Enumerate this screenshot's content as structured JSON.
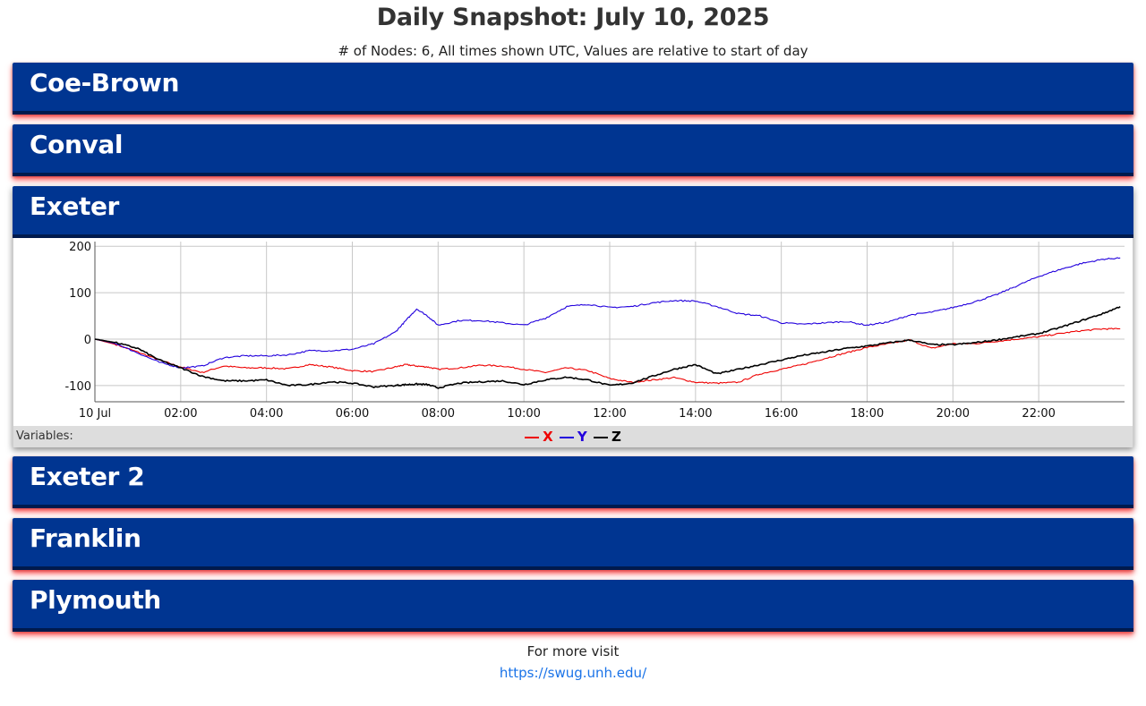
{
  "page": {
    "title": "Daily Snapshot: July 10, 2025",
    "subtitle": "# of Nodes: 6, All times shown UTC, Values are relative to start of day"
  },
  "nodes": [
    {
      "name": "Coe-Brown",
      "expanded": false
    },
    {
      "name": "Conval",
      "expanded": false
    },
    {
      "name": "Exeter",
      "expanded": true
    },
    {
      "name": "Exeter 2",
      "expanded": false
    },
    {
      "name": "Franklin",
      "expanded": false
    },
    {
      "name": "Plymouth",
      "expanded": false
    }
  ],
  "legend": {
    "label": "Variables:",
    "items": [
      {
        "name": "X",
        "color": "#ee0000"
      },
      {
        "name": "Y",
        "color": "#2200dd"
      },
      {
        "name": "Z",
        "color": "#000000"
      }
    ]
  },
  "footer": {
    "text": "For more visit",
    "link": "https://swug.unh.edu/"
  },
  "chart_data": {
    "type": "line",
    "title": "",
    "xlabel": "",
    "ylabel": "",
    "x_unit": "hours UTC",
    "xlim": [
      0,
      24
    ],
    "ylim": [
      -135,
      210
    ],
    "x_tick_labels": [
      "10 Jul",
      "02:00",
      "04:00",
      "06:00",
      "08:00",
      "10:00",
      "12:00",
      "14:00",
      "16:00",
      "18:00",
      "20:00",
      "22:00"
    ],
    "x_tick_values": [
      0,
      2,
      4,
      6,
      8,
      10,
      12,
      14,
      16,
      18,
      20,
      22
    ],
    "y_tick_values": [
      200,
      100,
      0,
      -100
    ],
    "grid": true,
    "legend_position": "bottom",
    "x": [
      0,
      0.5,
      1,
      1.5,
      2,
      2.5,
      3,
      3.5,
      4,
      4.5,
      5,
      5.5,
      6,
      6.5,
      7,
      7.25,
      7.5,
      7.75,
      8,
      8.5,
      9,
      9.5,
      10,
      10.5,
      11,
      11.5,
      12,
      12.5,
      13,
      13.5,
      14,
      14.5,
      15,
      15.5,
      16,
      16.5,
      17,
      17.5,
      18,
      18.5,
      19,
      19.5,
      20,
      20.5,
      21,
      21.5,
      22,
      22.5,
      23,
      23.5,
      23.9
    ],
    "series": [
      {
        "name": "X",
        "color": "#ee0000",
        "values": [
          0,
          -12,
          -28,
          -45,
          -60,
          -72,
          -58,
          -62,
          -62,
          -64,
          -55,
          -60,
          -68,
          -70,
          -60,
          -55,
          -58,
          -60,
          -65,
          -62,
          -56,
          -58,
          -65,
          -72,
          -62,
          -68,
          -85,
          -93,
          -88,
          -83,
          -93,
          -95,
          -93,
          -75,
          -65,
          -55,
          -42,
          -30,
          -18,
          -10,
          -2,
          -20,
          -10,
          -10,
          -5,
          0,
          5,
          12,
          18,
          22,
          22
        ]
      },
      {
        "name": "Y",
        "color": "#2200dd",
        "values": [
          0,
          -10,
          -30,
          -50,
          -62,
          -58,
          -40,
          -36,
          -36,
          -34,
          -25,
          -25,
          -22,
          -10,
          15,
          40,
          65,
          50,
          30,
          40,
          40,
          35,
          30,
          45,
          70,
          75,
          68,
          70,
          78,
          83,
          82,
          70,
          55,
          50,
          35,
          32,
          35,
          38,
          30,
          37,
          52,
          58,
          68,
          80,
          95,
          115,
          135,
          150,
          163,
          172,
          175
        ]
      },
      {
        "name": "Z",
        "color": "#000000",
        "values": [
          0,
          -8,
          -20,
          -45,
          -62,
          -80,
          -90,
          -90,
          -88,
          -100,
          -98,
          -92,
          -95,
          -103,
          -100,
          -98,
          -97,
          -98,
          -105,
          -95,
          -92,
          -90,
          -98,
          -88,
          -82,
          -88,
          -100,
          -95,
          -80,
          -65,
          -55,
          -75,
          -65,
          -55,
          -45,
          -35,
          -28,
          -20,
          -15,
          -8,
          -2,
          -12,
          -12,
          -8,
          -2,
          5,
          12,
          25,
          40,
          55,
          70
        ]
      }
    ]
  }
}
